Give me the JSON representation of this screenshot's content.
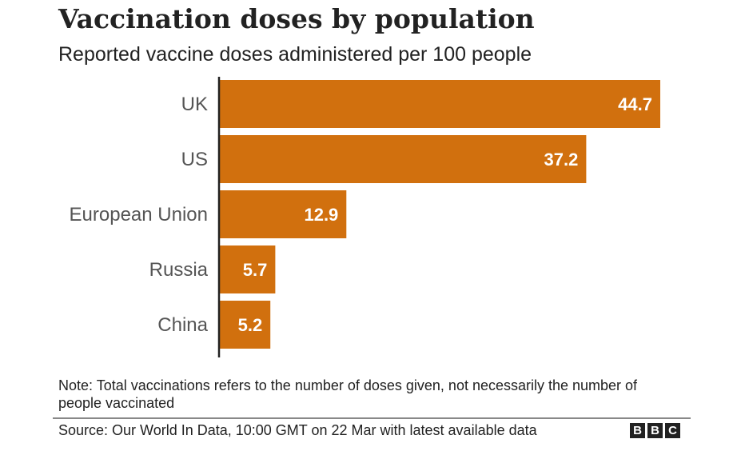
{
  "chart_data": {
    "type": "bar",
    "orientation": "horizontal",
    "title": "Vaccination doses by population",
    "subtitle": "Reported vaccine doses administered per 100 people",
    "categories": [
      "UK",
      "US",
      "European Union",
      "Russia",
      "China"
    ],
    "values": [
      44.7,
      37.2,
      12.9,
      5.7,
      5.2
    ],
    "data_labels": [
      "44.7",
      "37.2",
      "12.9",
      "5.7",
      "5.2"
    ],
    "xlim": [
      0,
      44.7
    ],
    "grid": false,
    "bar_color": "#d1700e",
    "label_color": "#ffffff"
  },
  "note": "Note: Total vaccinations refers to the number of doses given, not necessarily the number of people vaccinated",
  "source": "Source: Our World In Data, 10:00 GMT on 22 Mar with latest available data",
  "logo": [
    "B",
    "B",
    "C"
  ]
}
